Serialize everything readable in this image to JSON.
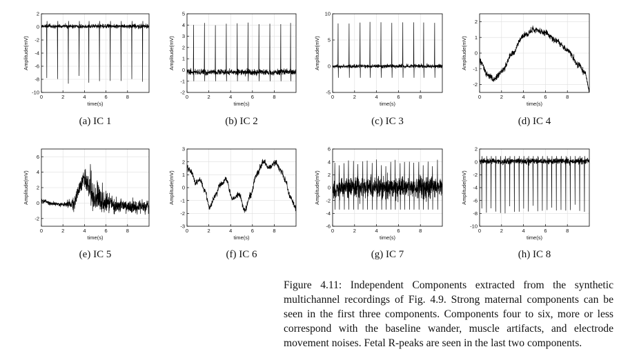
{
  "caption": {
    "prefix": "Figure 4.11:",
    "text": "Independent Components extracted from the synthetic multichannel recordings of Fig. 4.9. Strong maternal components can be seen in the first three components. Components four to six, more or less correspond with the baseline wander, muscle artifacts, and electrode movement noises. Fetal R-peaks are seen in the last two components."
  },
  "chart_data": [
    {
      "type": "line",
      "subcaption": "(a) IC 1",
      "xlabel": "time(s)",
      "ylabel": "Amplitude(mV)",
      "xlim": [
        0,
        10
      ],
      "ylim": [
        -10,
        2
      ],
      "xticks": [
        0,
        2,
        4,
        6,
        8
      ],
      "yticks": [
        2,
        0,
        -2,
        -4,
        -6,
        -8,
        -10
      ],
      "grid": true,
      "series": [
        {
          "shape": "negative-spikes",
          "baseline": 0.1,
          "noise": 0.3,
          "peak_times": [
            0.5,
            1.5,
            2.5,
            3.5,
            4.4,
            5.4,
            6.4,
            7.4,
            8.4,
            9.4
          ],
          "peak_value": -8
        }
      ]
    },
    {
      "type": "line",
      "subcaption": "(b) IC 2",
      "xlabel": "time(s)",
      "ylabel": "Amplitude(mV)",
      "xlim": [
        0,
        10
      ],
      "ylim": [
        -2,
        5
      ],
      "xticks": [
        0,
        2,
        4,
        6,
        8
      ],
      "yticks": [
        5,
        4,
        3,
        2,
        1,
        0,
        -1,
        -2
      ],
      "grid": true,
      "series": [
        {
          "shape": "positive-spikes",
          "baseline": -0.2,
          "noise": 0.25,
          "trough_value": -1.0,
          "peak_times": [
            0.6,
            1.6,
            2.6,
            3.6,
            4.6,
            5.6,
            6.6,
            7.6,
            8.6,
            9.5
          ],
          "peak_value": 4.1
        }
      ]
    },
    {
      "type": "line",
      "subcaption": "(c) IC 3",
      "xlabel": "time(s)",
      "ylabel": "Amplitude(mV)",
      "xlim": [
        0,
        10
      ],
      "ylim": [
        -5,
        10
      ],
      "xticks": [
        0,
        2,
        4,
        6,
        8
      ],
      "yticks": [
        10,
        5,
        0,
        -5
      ],
      "grid": true,
      "series": [
        {
          "shape": "positive-spikes",
          "baseline": 0.0,
          "noise": 0.35,
          "trough_value": -2.2,
          "peak_times": [
            0.5,
            1.5,
            2.5,
            3.4,
            4.4,
            5.4,
            6.4,
            7.4,
            8.3,
            9.3
          ],
          "peak_value": 8.3
        }
      ]
    },
    {
      "type": "line",
      "subcaption": "(d) IC 4",
      "xlabel": "time(s)",
      "ylabel": "Amplitude(mV)",
      "xlim": [
        0,
        10
      ],
      "ylim": [
        -2.5,
        2.5
      ],
      "xticks": [
        0,
        2,
        4,
        6,
        8
      ],
      "yticks": [
        2,
        1,
        0,
        -1,
        -2
      ],
      "grid": true,
      "series": [
        {
          "shape": "wander",
          "noise": 0.18,
          "keypoints": [
            [
              0,
              -0.5
            ],
            [
              0.8,
              -1.4
            ],
            [
              1.3,
              -1.7
            ],
            [
              2.0,
              -1.2
            ],
            [
              3.0,
              0.0
            ],
            [
              4.0,
              1.1
            ],
            [
              5.0,
              1.5
            ],
            [
              6.0,
              1.3
            ],
            [
              7.0,
              0.8
            ],
            [
              8.0,
              0.2
            ],
            [
              9.0,
              -0.7
            ],
            [
              9.6,
              -1.3
            ],
            [
              10.0,
              -2.3
            ]
          ]
        }
      ]
    },
    {
      "type": "line",
      "subcaption": "(e) IC 5",
      "xlabel": "time(s)",
      "ylabel": "Amplitude(mV)",
      "xlim": [
        0,
        10
      ],
      "ylim": [
        -3,
        7
      ],
      "xticks": [
        0,
        2,
        4,
        6,
        8
      ],
      "yticks": [
        6,
        4,
        2,
        0,
        -2
      ],
      "grid": true,
      "series": [
        {
          "shape": "muscle",
          "noise": 0.25,
          "keypoints": [
            [
              0,
              0.3
            ],
            [
              1.0,
              -0.1
            ],
            [
              2.0,
              -0.2
            ],
            [
              3.0,
              0.0
            ],
            [
              3.5,
              1.6
            ],
            [
              3.9,
              3.3
            ],
            [
              4.3,
              2.5
            ],
            [
              5.0,
              0.8
            ],
            [
              6.0,
              0.1
            ],
            [
              7.0,
              -0.3
            ],
            [
              8.0,
              -0.4
            ],
            [
              9.0,
              -0.5
            ],
            [
              10.0,
              -0.3
            ]
          ],
          "burst_center": 4.5,
          "burst_width": 1.8,
          "burst_amp": 1.3
        }
      ]
    },
    {
      "type": "line",
      "subcaption": "(f) IC 6",
      "xlabel": "time(s)",
      "ylabel": "Amplitude(mV)",
      "xlim": [
        0,
        10
      ],
      "ylim": [
        -3,
        3
      ],
      "xticks": [
        0,
        2,
        4,
        6,
        8
      ],
      "yticks": [
        3,
        2,
        1,
        0,
        -1,
        -2,
        -3
      ],
      "grid": true,
      "series": [
        {
          "shape": "wander",
          "noise": 0.22,
          "keypoints": [
            [
              0,
              1.5
            ],
            [
              0.4,
              1.2
            ],
            [
              0.8,
              0.4
            ],
            [
              1.2,
              0.6
            ],
            [
              1.6,
              -0.2
            ],
            [
              2.1,
              -1.5
            ],
            [
              2.6,
              -0.6
            ],
            [
              3.0,
              0.2
            ],
            [
              3.6,
              0.6
            ],
            [
              4.2,
              -0.9
            ],
            [
              4.8,
              -0.6
            ],
            [
              5.3,
              -1.8
            ],
            [
              5.8,
              -0.6
            ],
            [
              6.4,
              1.0
            ],
            [
              7.0,
              2.0
            ],
            [
              7.5,
              1.5
            ],
            [
              8.1,
              2.0
            ],
            [
              8.6,
              1.3
            ],
            [
              9.0,
              0.6
            ],
            [
              9.5,
              -0.8
            ],
            [
              10.0,
              -1.6
            ]
          ]
        }
      ]
    },
    {
      "type": "line",
      "subcaption": "(g) IC 7",
      "xlabel": "time(s)",
      "ylabel": "Amplitude(mV)",
      "xlim": [
        0,
        10
      ],
      "ylim": [
        -6,
        6
      ],
      "xticks": [
        0,
        2,
        4,
        6,
        8
      ],
      "yticks": [
        6,
        4,
        2,
        0,
        -2,
        -4,
        -6
      ],
      "grid": true,
      "series": [
        {
          "shape": "dense-noise",
          "baseline": 0.0,
          "noise": 1.6,
          "spike_times": [
            0.2,
            0.6,
            1.05,
            1.45,
            1.9,
            2.3,
            2.75,
            3.15,
            3.6,
            4.0,
            4.45,
            4.85,
            5.3,
            5.7,
            6.15,
            6.55,
            7.0,
            7.4,
            7.85,
            8.25,
            8.7,
            9.1,
            9.55
          ],
          "spike_value": 3.8
        }
      ]
    },
    {
      "type": "line",
      "subcaption": "(h) IC 8",
      "xlabel": "time(s)",
      "ylabel": "Amplitude(mV)",
      "xlim": [
        0,
        10
      ],
      "ylim": [
        -10,
        2
      ],
      "xticks": [
        0,
        2,
        4,
        6,
        8
      ],
      "yticks": [
        2,
        0,
        -2,
        -4,
        -6,
        -8,
        -10
      ],
      "grid": true,
      "series": [
        {
          "shape": "negative-spikes",
          "baseline": 0.1,
          "noise": 0.45,
          "peak_times": [
            0.2,
            0.62,
            1.05,
            1.47,
            1.9,
            2.32,
            2.75,
            3.17,
            3.6,
            4.02,
            4.45,
            4.87,
            5.3,
            5.72,
            6.15,
            6.57,
            7.0,
            7.42,
            7.85,
            8.27,
            8.7,
            9.12,
            9.55
          ],
          "peak_value": -7.5
        }
      ]
    }
  ]
}
